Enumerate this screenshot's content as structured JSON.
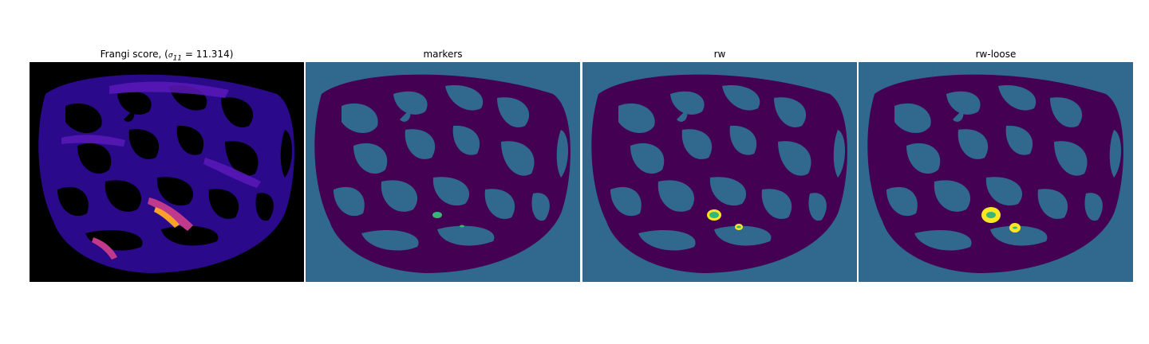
{
  "panels": [
    {
      "title": "Frangi score, (",
      "sigma": "σ",
      "sigma_sub": "11",
      "sigma_val": " = 11.314)",
      "closing": ""
    },
    {
      "title": "markers"
    },
    {
      "title": "rw"
    },
    {
      "title": "rw-loose"
    }
  ],
  "colors": {
    "background_black": "#000000",
    "segment_teal": "#31688e",
    "mask_purple": "#440154",
    "marker_green": "#35b779",
    "label_yellow": "#fde725",
    "frangi_low": "#120057",
    "frangi_mid": "#5a19b8",
    "frangi_high": "#f9a12a"
  }
}
